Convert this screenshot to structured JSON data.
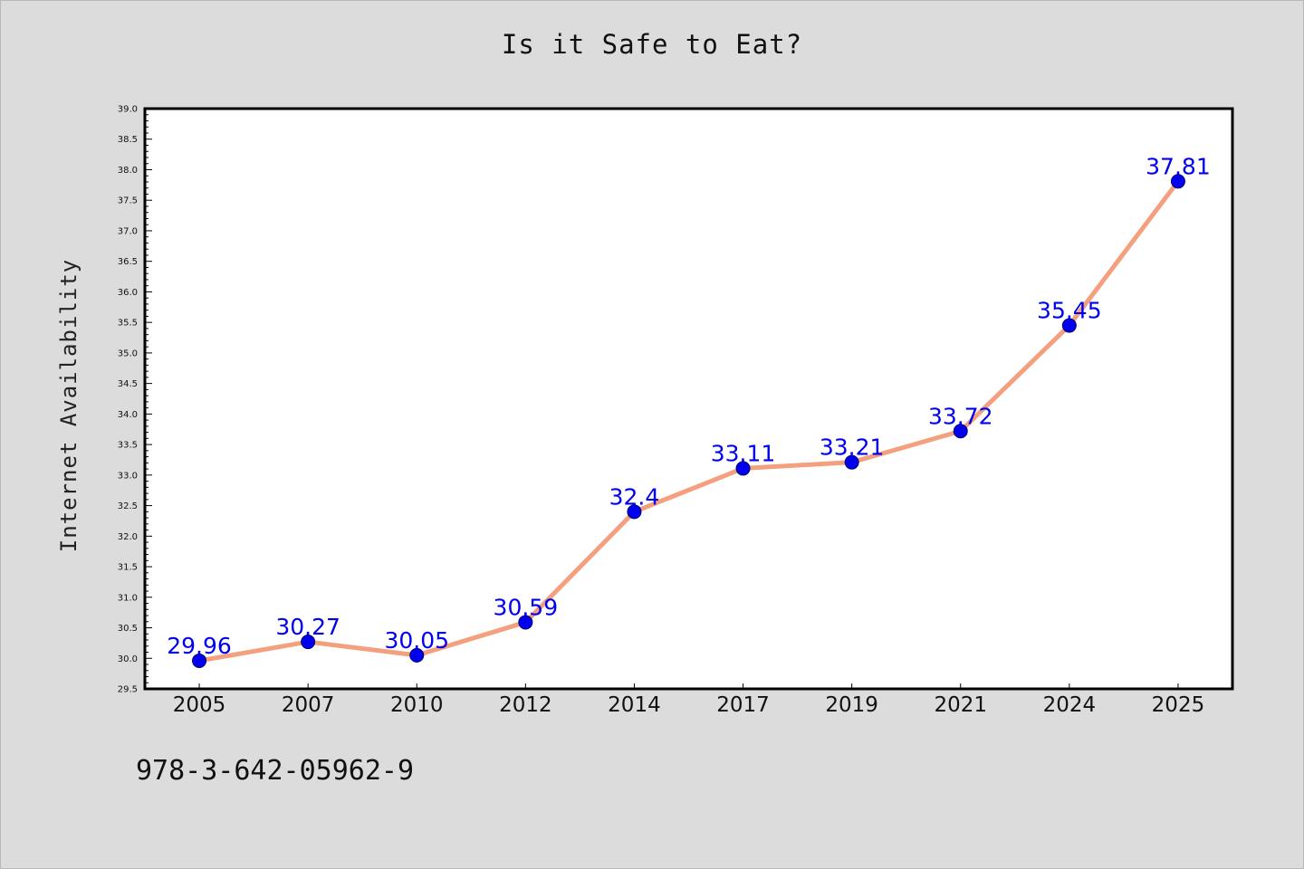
{
  "chart_data": {
    "type": "line",
    "title": "Is it Safe to Eat?",
    "xlabel": "",
    "ylabel": "Internet Availability",
    "categories": [
      "2005",
      "2007",
      "2010",
      "2012",
      "2014",
      "2017",
      "2019",
      "2021",
      "2024",
      "2025"
    ],
    "series": [
      {
        "values": [
          29.96,
          30.27,
          30.05,
          30.59,
          32.4,
          33.11,
          33.21,
          33.72,
          35.45,
          37.81
        ],
        "labels": [
          "29.96",
          "30.27",
          "30.05",
          "30.59",
          "32.4",
          "33.11",
          "33.21",
          "33.72",
          "35.45",
          "37.81"
        ]
      }
    ],
    "ylim": [
      29.5,
      39.0
    ],
    "ytick_step": 0.5,
    "grid": false,
    "line_color": "#f4a07e",
    "marker_color": "#0000ee",
    "label_color": "#0000ee"
  },
  "footnote": "978-3-642-05962-9"
}
